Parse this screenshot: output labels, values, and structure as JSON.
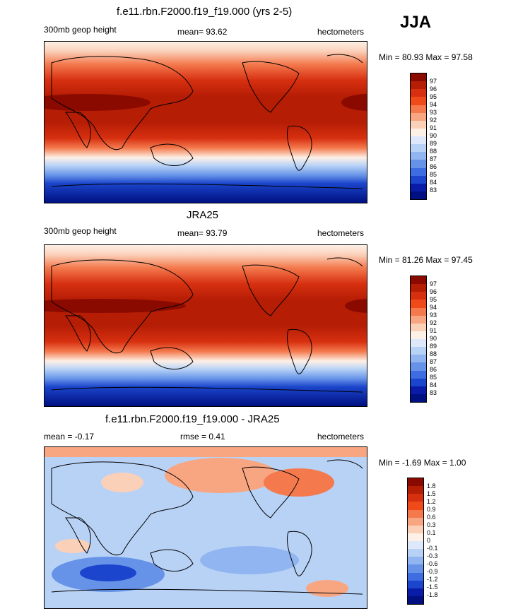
{
  "season": "JJA",
  "panels": [
    {
      "title": "f.e11.rbn.F2000.f19_f19.000 (yrs 2-5)",
      "left_label": "300mb geop height",
      "mean_label": "mean=  93.62",
      "units": "hectometers",
      "minmax": "Min =  80.93 Max =  97.58",
      "colorbar_labels": [
        "97",
        "96",
        "95",
        "94",
        "93",
        "92",
        "91",
        "90",
        "89",
        "88",
        "87",
        "86",
        "85",
        "84",
        "83"
      ]
    },
    {
      "title": "JRA25",
      "left_label": "300mb geop height",
      "mean_label": "mean=  93.79",
      "units": "hectometers",
      "minmax": "Min =  81.26 Max =  97.45",
      "colorbar_labels": [
        "97",
        "96",
        "95",
        "94",
        "93",
        "92",
        "91",
        "90",
        "89",
        "88",
        "87",
        "86",
        "85",
        "84",
        "83"
      ]
    },
    {
      "title": "f.e11.rbn.F2000.f19_f19.000 - JRA25",
      "left_label": "mean =  -0.17",
      "mid_label": "rmse =   0.41",
      "units": "hectometers",
      "minmax": "Min =  -1.69 Max =   1.00",
      "colorbar_labels": [
        "1.8",
        "1.5",
        "1.2",
        "0.9",
        "0.6",
        "0.3",
        "0.1",
        "0",
        "-0.1",
        "-0.3",
        "-0.6",
        "-0.9",
        "-1.2",
        "-1.5",
        "-1.8"
      ]
    }
  ],
  "colors": {
    "scale": [
      "#8b0a00",
      "#b51d05",
      "#d73010",
      "#ef4a1a",
      "#f47a4e",
      "#f8a582",
      "#fbd0b9",
      "#fdf0e6",
      "#dde9fa",
      "#b8d2f6",
      "#90b5f0",
      "#6693e8",
      "#3d6de0",
      "#1b45cc",
      "#0a1ba8",
      "#001080"
    ]
  }
}
